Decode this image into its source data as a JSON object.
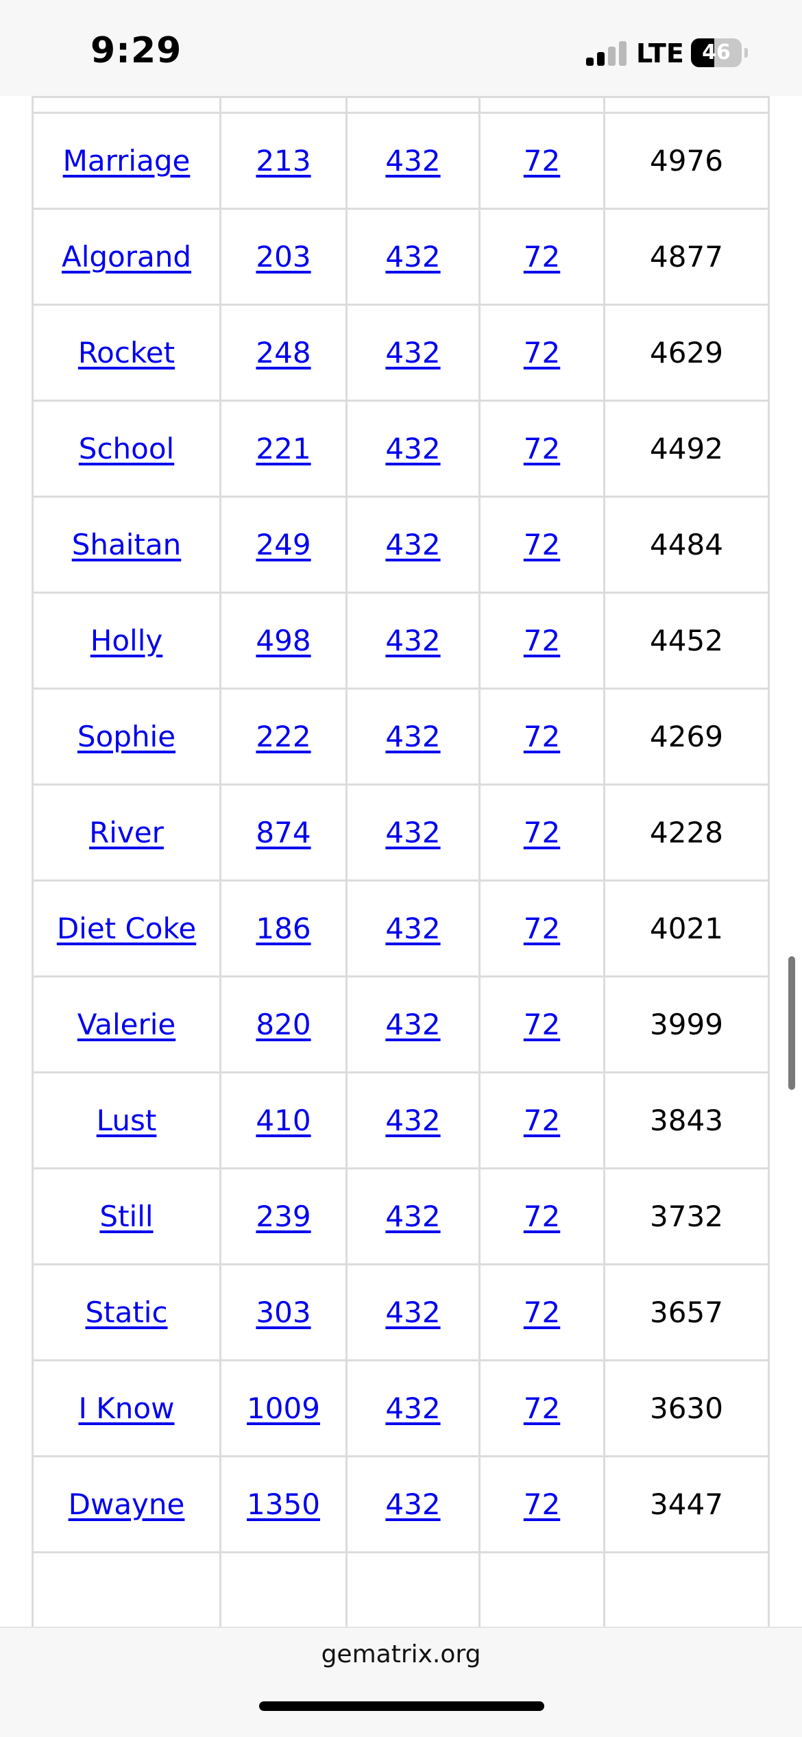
{
  "status_bar": {
    "time": "9:29",
    "network": "LTE",
    "battery_percent": "46",
    "battery_level": 0.46,
    "signal_bars_active": 2
  },
  "table": {
    "rows": [
      {
        "word": "Marriage",
        "c1": "213",
        "c2": "432",
        "c3": "72",
        "c4": "4976"
      },
      {
        "word": "Algorand",
        "c1": "203",
        "c2": "432",
        "c3": "72",
        "c4": "4877"
      },
      {
        "word": "Rocket",
        "c1": "248",
        "c2": "432",
        "c3": "72",
        "c4": "4629"
      },
      {
        "word": "School",
        "c1": "221",
        "c2": "432",
        "c3": "72",
        "c4": "4492"
      },
      {
        "word": "Shaitan",
        "c1": "249",
        "c2": "432",
        "c3": "72",
        "c4": "4484"
      },
      {
        "word": "Holly",
        "c1": "498",
        "c2": "432",
        "c3": "72",
        "c4": "4452"
      },
      {
        "word": "Sophie",
        "c1": "222",
        "c2": "432",
        "c3": "72",
        "c4": "4269"
      },
      {
        "word": "River",
        "c1": "874",
        "c2": "432",
        "c3": "72",
        "c4": "4228"
      },
      {
        "word": "Diet Coke",
        "c1": "186",
        "c2": "432",
        "c3": "72",
        "c4": "4021"
      },
      {
        "word": "Valerie",
        "c1": "820",
        "c2": "432",
        "c3": "72",
        "c4": "3999"
      },
      {
        "word": "Lust",
        "c1": "410",
        "c2": "432",
        "c3": "72",
        "c4": "3843"
      },
      {
        "word": "Still",
        "c1": "239",
        "c2": "432",
        "c3": "72",
        "c4": "3732"
      },
      {
        "word": "Static",
        "c1": "303",
        "c2": "432",
        "c3": "72",
        "c4": "3657"
      },
      {
        "word": "I Know",
        "c1": "1009",
        "c2": "432",
        "c3": "72",
        "c4": "3630"
      },
      {
        "word": "Dwayne",
        "c1": "1350",
        "c2": "432",
        "c3": "72",
        "c4": "3447"
      }
    ]
  },
  "browser": {
    "url": "gematrix.org"
  }
}
